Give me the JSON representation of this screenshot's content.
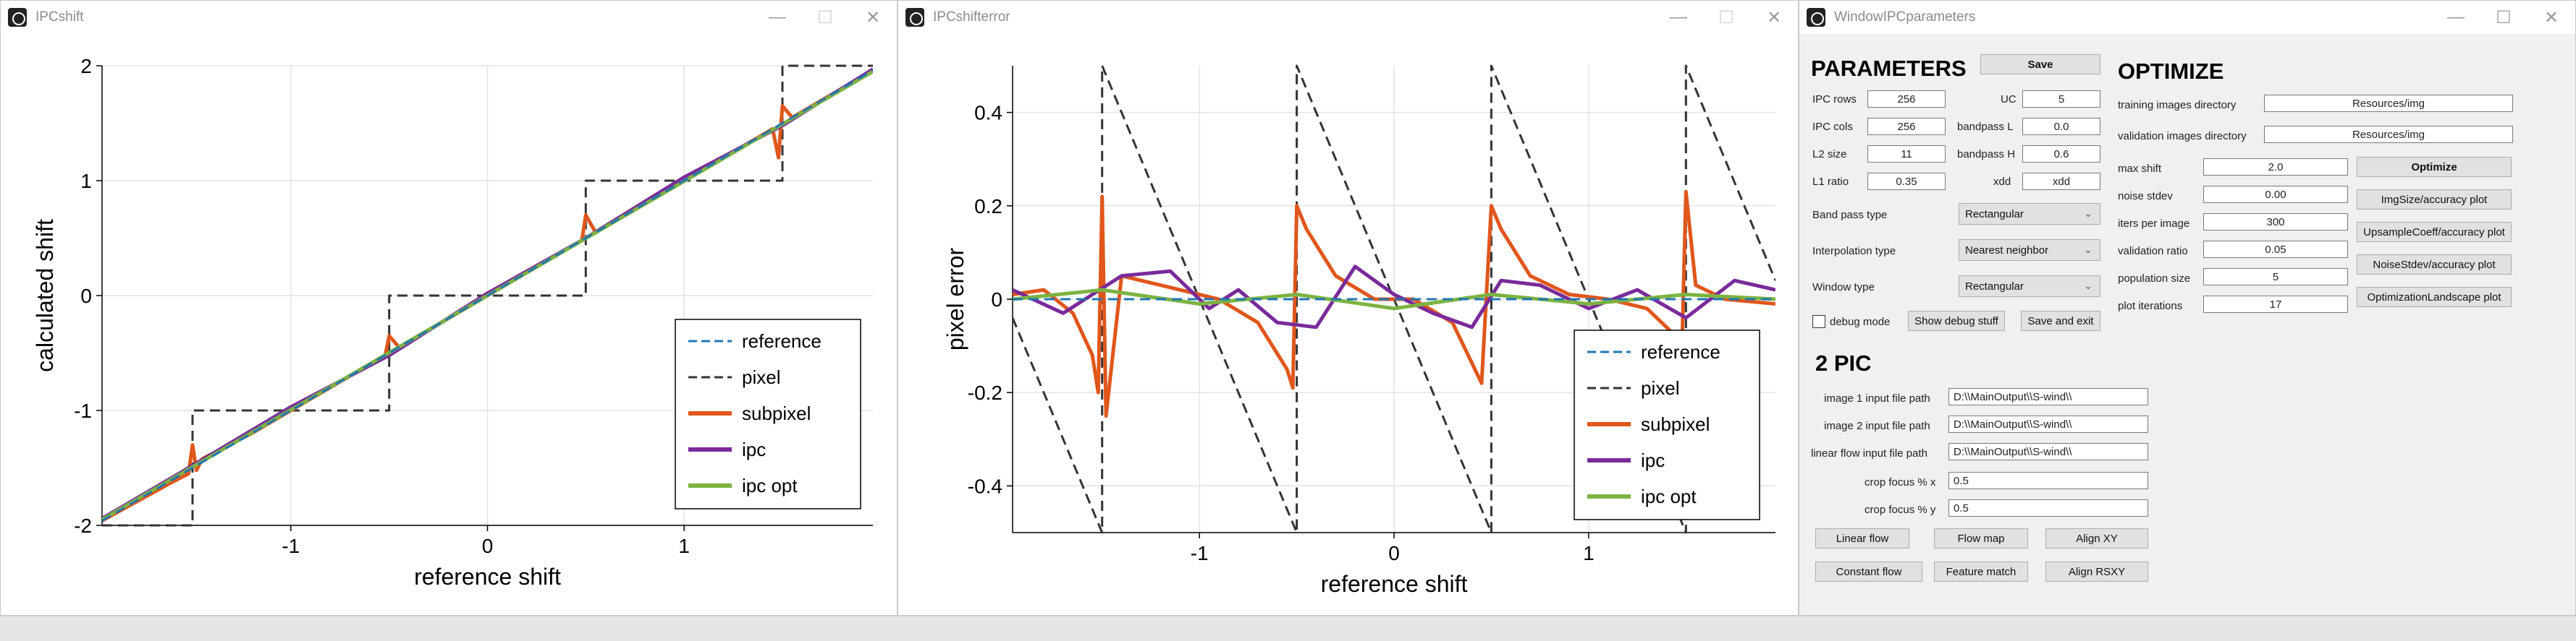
{
  "window1": {
    "title": "IPCshift",
    "buttons": {
      "minimize": "—",
      "maximize": "☐",
      "close": "✕"
    },
    "chart_data": {
      "type": "line",
      "xlabel": "reference shift",
      "ylabel": "calculated shift",
      "xlim": [
        -1.96,
        1.96
      ],
      "ylim": [
        -2,
        2
      ],
      "xticks": [
        -1,
        0,
        1
      ],
      "yticks": [
        -2,
        -1,
        0,
        1,
        2
      ],
      "grid": true,
      "legend_placement": "bottom-right",
      "series": [
        {
          "name": "reference",
          "color": "#1f77b4",
          "style": "dashed",
          "x": [
            -1.96,
            1.96
          ],
          "y": [
            -1.96,
            1.96
          ]
        },
        {
          "name": "pixel",
          "color": "#333333",
          "style": "dashed",
          "x": [
            -1.96,
            -1.5,
            -1.5,
            -0.5,
            -0.5,
            0.5,
            0.5,
            1.5,
            1.5,
            1.96
          ],
          "y": [
            -2,
            -2,
            -1,
            -1,
            0,
            0,
            1,
            1,
            2,
            2
          ]
        },
        {
          "name": "subpixel",
          "color": "#e0561b",
          "style": "solid",
          "x": [
            -1.96,
            -1.6,
            -1.52,
            -1.5,
            -1.48,
            -1.45,
            -1.2,
            -0.8,
            -0.52,
            -0.5,
            -0.45,
            -0.2,
            0.2,
            0.48,
            0.5,
            0.55,
            0.9,
            1.3,
            1.45,
            1.48,
            1.5,
            1.55,
            1.96
          ],
          "y": [
            -1.96,
            -1.62,
            -1.55,
            -1.3,
            -1.52,
            -1.42,
            -1.2,
            -0.8,
            -0.52,
            -0.35,
            -0.45,
            -0.2,
            0.2,
            0.48,
            0.7,
            0.55,
            0.9,
            1.3,
            1.45,
            1.2,
            1.65,
            1.55,
            1.96
          ]
        },
        {
          "name": "ipc",
          "color": "#7a2a9a",
          "style": "solid",
          "x": [
            -1.96,
            -1.5,
            -1.0,
            -0.5,
            0.0,
            0.5,
            1.0,
            1.5,
            1.96
          ],
          "y": [
            -1.94,
            -1.48,
            -0.97,
            -0.52,
            0.02,
            0.5,
            1.03,
            1.48,
            1.97
          ]
        },
        {
          "name": "ipc opt",
          "color": "#7cb342",
          "style": "solid",
          "x": [
            -1.96,
            1.96
          ],
          "y": [
            -1.95,
            1.95
          ]
        }
      ]
    }
  },
  "window2": {
    "title": "IPCshifterror",
    "buttons": {
      "minimize": "—",
      "maximize": "☐",
      "close": "✕"
    },
    "chart_data": {
      "type": "line",
      "xlabel": "reference shift",
      "ylabel": "pixel error",
      "xlim": [
        -1.96,
        1.96
      ],
      "ylim": [
        -0.5,
        0.5
      ],
      "xticks": [
        -1,
        0,
        1
      ],
      "yticks": [
        -0.4,
        -0.2,
        0,
        0.2,
        0.4
      ],
      "grid": true,
      "legend_placement": "bottom-right",
      "series": [
        {
          "name": "reference",
          "color": "#1f77b4",
          "style": "dashed",
          "x": [
            -1.96,
            1.96
          ],
          "y": [
            0,
            0
          ]
        },
        {
          "name": "pixel",
          "color": "#333333",
          "style": "dashed",
          "x": [
            -1.96,
            -1.5,
            -1.5,
            -0.5,
            -0.5,
            0.5,
            0.5,
            1.5,
            1.5,
            1.96
          ],
          "y": [
            -0.04,
            -0.5,
            0.5,
            -0.5,
            0.5,
            -0.5,
            0.5,
            -0.5,
            0.5,
            0.04
          ]
        },
        {
          "name": "subpixel",
          "color": "#e0561b",
          "style": "solid",
          "x": [
            -1.96,
            -1.8,
            -1.65,
            -1.55,
            -1.52,
            -1.5,
            -1.48,
            -1.4,
            -1.2,
            -0.9,
            -0.7,
            -0.55,
            -0.52,
            -0.5,
            -0.45,
            -0.3,
            -0.1,
            0.1,
            0.3,
            0.45,
            0.5,
            0.55,
            0.7,
            0.9,
            1.1,
            1.3,
            1.45,
            1.48,
            1.5,
            1.55,
            1.7,
            1.96
          ],
          "y": [
            0.01,
            0.02,
            -0.03,
            -0.12,
            -0.2,
            0.22,
            -0.25,
            0.05,
            0.03,
            0.0,
            -0.05,
            -0.15,
            -0.19,
            0.2,
            0.15,
            0.05,
            0.0,
            0.0,
            -0.05,
            -0.18,
            0.2,
            0.15,
            0.05,
            0.01,
            0.0,
            -0.02,
            -0.08,
            -0.1,
            0.23,
            0.03,
            0.0,
            -0.01
          ]
        },
        {
          "name": "ipc",
          "color": "#7a2a9a",
          "style": "solid",
          "x": [
            -1.96,
            -1.7,
            -1.4,
            -1.15,
            -0.95,
            -0.8,
            -0.6,
            -0.4,
            -0.2,
            0.0,
            0.2,
            0.4,
            0.55,
            0.75,
            1.0,
            1.25,
            1.5,
            1.75,
            1.96
          ],
          "y": [
            0.02,
            -0.03,
            0.05,
            0.06,
            -0.02,
            0.02,
            -0.05,
            -0.06,
            0.07,
            0.01,
            -0.03,
            -0.06,
            0.04,
            0.03,
            -0.02,
            0.02,
            -0.04,
            0.04,
            0.02
          ]
        },
        {
          "name": "ipc opt",
          "color": "#7cb342",
          "style": "solid",
          "x": [
            -1.96,
            -1.5,
            -1.0,
            -0.5,
            0.0,
            0.5,
            1.0,
            1.5,
            1.96
          ],
          "y": [
            0.0,
            0.02,
            -0.01,
            0.01,
            -0.02,
            0.01,
            -0.01,
            0.01,
            0.0
          ]
        }
      ]
    }
  },
  "window3": {
    "title": "WindowIPCparameters",
    "buttons": {
      "minimize": "—",
      "maximize": "☐",
      "close": "✕"
    },
    "parameters": {
      "heading": "PARAMETERS",
      "save_label": "Save",
      "ipc_rows_label": "IPC rows",
      "ipc_rows_value": "256",
      "uc_label": "UC",
      "uc_value": "5",
      "ipc_cols_label": "IPC cols",
      "ipc_cols_value": "256",
      "bandpass_l_label": "bandpass L",
      "bandpass_l_value": "0.0",
      "l2_size_label": "L2 size",
      "l2_size_value": "11",
      "bandpass_h_label": "bandpass H",
      "bandpass_h_value": "0.6",
      "l1_ratio_label": "L1 ratio",
      "l1_ratio_value": "0.35",
      "xdd_label": "xdd",
      "xdd_value": "xdd",
      "band_pass_type_label": "Band pass type",
      "band_pass_type_value": "Rectangular",
      "interpolation_type_label": "Interpolation type",
      "interpolation_type_value": "Nearest neighbor",
      "window_type_label": "Window type",
      "window_type_value": "Rectangular",
      "debug_mode_label": "debug mode",
      "show_debug_label": "Show debug stuff",
      "save_exit_label": "Save and exit"
    },
    "optimize": {
      "heading": "OPTIMIZE",
      "training_dir_label": "training images directory",
      "training_dir_value": "Resources/img",
      "validation_dir_label": "validation images directory",
      "validation_dir_value": "Resources/img",
      "max_shift_label": "max shift",
      "max_shift_value": "2.0",
      "noise_stdev_label": "noise stdev",
      "noise_stdev_value": "0.00",
      "iters_label": "iters per image",
      "iters_value": "300",
      "validation_ratio_label": "validation ratio",
      "validation_ratio_value": "0.05",
      "population_label": "population size",
      "population_value": "5",
      "plot_iterations_label": "plot iterations",
      "plot_iterations_value": "17",
      "optimize_label": "Optimize",
      "imgsize_plot_label": "ImgSize/accuracy plot",
      "upsample_plot_label": "UpsampleCoeff/accuracy plot",
      "noise_plot_label": "NoiseStdev/accuracy plot",
      "landscape_plot_label": "OptimizationLandscape plot"
    },
    "pic": {
      "heading": "2 PIC",
      "image1_label": "image 1 input file path",
      "image1_value": "D:\\\\MainOutput\\\\S-wind\\\\",
      "image2_label": "image 2 input file path",
      "image2_value": "D:\\\\MainOutput\\\\S-wind\\\\",
      "flow_label": "linear flow input file path",
      "flow_value": "D:\\\\MainOutput\\\\S-wind\\\\",
      "crop_x_label": "crop focus % x",
      "crop_x_value": "0.5",
      "crop_y_label": "crop focus % y",
      "crop_y_value": "0.5",
      "linear_flow_label": "Linear flow",
      "flow_map_label": "Flow map",
      "align_xy_label": "Align XY",
      "constant_flow_label": "Constant flow",
      "feature_match_label": "Feature match",
      "align_rsxy_label": "Align RSXY"
    }
  }
}
